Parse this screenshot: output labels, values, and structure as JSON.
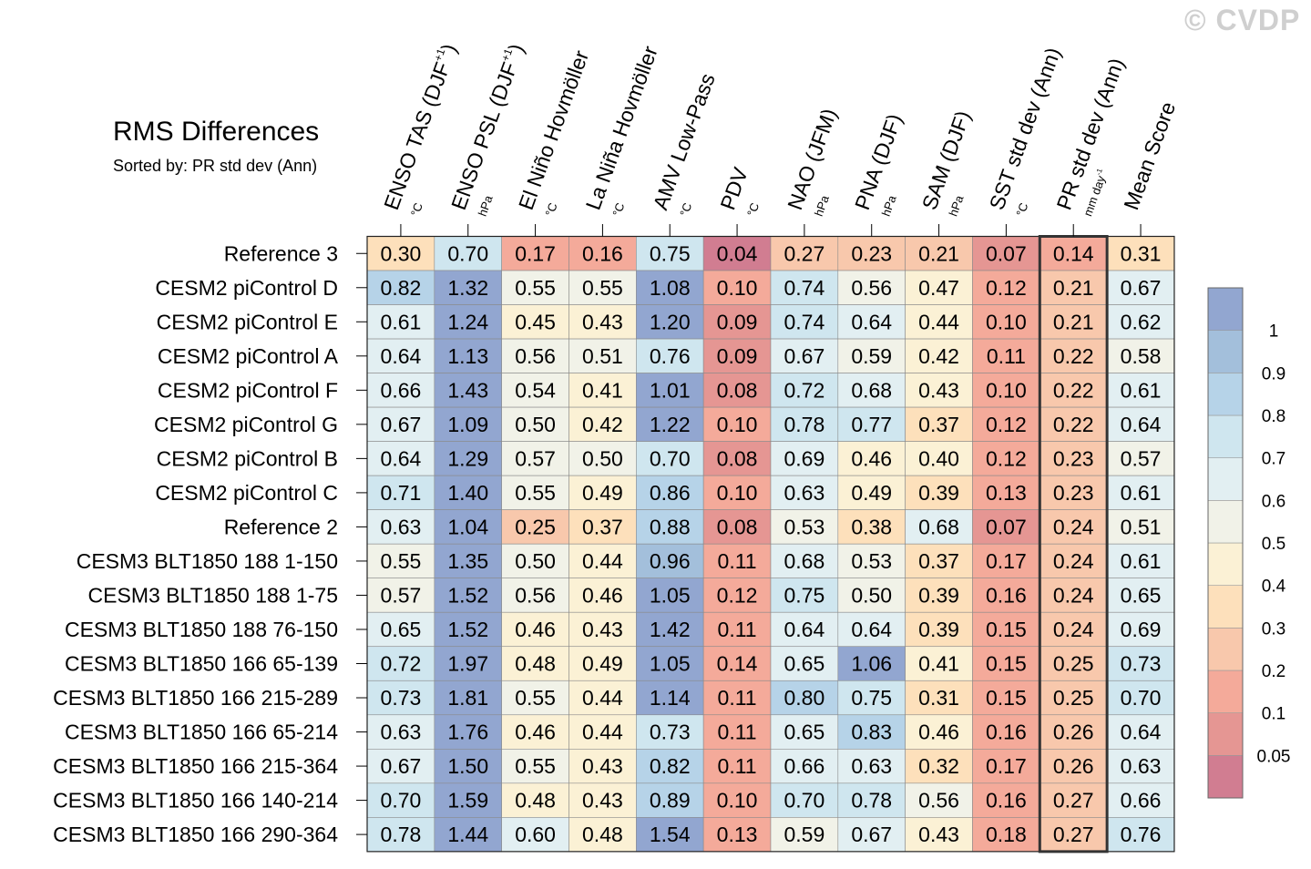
{
  "copyright": "© CVDP",
  "chart_data": {
    "type": "heatmap",
    "title": "RMS Differences",
    "subtitle": "Sorted by: PR std dev (Ann)",
    "highlight_column": "PR std dev (Ann)",
    "columns": [
      {
        "label": "ENSO TAS (DJF+1)",
        "name": "ENSO TAS (DJF",
        "sup": "+1",
        "close": ")",
        "unit": "°C"
      },
      {
        "label": "ENSO PSL (DJF+1)",
        "name": "ENSO PSL (DJF",
        "sup": "+1",
        "close": ")",
        "unit": "hPa"
      },
      {
        "label": "El Niño Hovmöller",
        "name": "El Niño Hovmöller",
        "sup": "",
        "close": "",
        "unit": "°C"
      },
      {
        "label": "La Niña Hovmöller",
        "name": "La Niña Hovmöller",
        "sup": "",
        "close": "",
        "unit": "°C"
      },
      {
        "label": "AMV Low-Pass",
        "name": "AMV Low-Pass",
        "sup": "",
        "close": "",
        "unit": "°C"
      },
      {
        "label": "PDV",
        "name": "PDV",
        "sup": "",
        "close": "",
        "unit": "°C"
      },
      {
        "label": "NAO (JFM)",
        "name": "NAO (JFM)",
        "sup": "",
        "close": "",
        "unit": "hPa"
      },
      {
        "label": "PNA (DJF)",
        "name": "PNA (DJF)",
        "sup": "",
        "close": "",
        "unit": "hPa"
      },
      {
        "label": "SAM (DJF)",
        "name": "SAM (DJF)",
        "sup": "",
        "close": "",
        "unit": "hPa"
      },
      {
        "label": "SST std dev (Ann)",
        "name": "SST std dev (Ann)",
        "sup": "",
        "close": "",
        "unit": "°C"
      },
      {
        "label": "PR std dev (Ann)",
        "name": "PR std dev (Ann)",
        "sup": "",
        "close": "",
        "unit": "mm day",
        "unit_sup": "-1"
      },
      {
        "label": "Mean Score",
        "name": "Mean Score",
        "sup": "",
        "close": "",
        "unit": ""
      }
    ],
    "rows": [
      {
        "name": "Reference 3",
        "values": [
          "0.30",
          "0.70",
          "0.17",
          "0.16",
          "0.75",
          "0.04",
          "0.27",
          "0.23",
          "0.21",
          "0.07",
          "0.14",
          "0.31"
        ]
      },
      {
        "name": "CESM2 piControl D",
        "values": [
          "0.82",
          "1.32",
          "0.55",
          "0.55",
          "1.08",
          "0.10",
          "0.74",
          "0.56",
          "0.47",
          "0.12",
          "0.21",
          "0.67"
        ]
      },
      {
        "name": "CESM2 piControl E",
        "values": [
          "0.61",
          "1.24",
          "0.45",
          "0.43",
          "1.20",
          "0.09",
          "0.74",
          "0.64",
          "0.44",
          "0.10",
          "0.21",
          "0.62"
        ]
      },
      {
        "name": "CESM2 piControl A",
        "values": [
          "0.64",
          "1.13",
          "0.56",
          "0.51",
          "0.76",
          "0.09",
          "0.67",
          "0.59",
          "0.42",
          "0.11",
          "0.22",
          "0.58"
        ]
      },
      {
        "name": "CESM2 piControl F",
        "values": [
          "0.66",
          "1.43",
          "0.54",
          "0.41",
          "1.01",
          "0.08",
          "0.72",
          "0.68",
          "0.43",
          "0.10",
          "0.22",
          "0.61"
        ]
      },
      {
        "name": "CESM2 piControl G",
        "values": [
          "0.67",
          "1.09",
          "0.50",
          "0.42",
          "1.22",
          "0.10",
          "0.78",
          "0.77",
          "0.37",
          "0.12",
          "0.22",
          "0.64"
        ]
      },
      {
        "name": "CESM2 piControl B",
        "values": [
          "0.64",
          "1.29",
          "0.57",
          "0.50",
          "0.70",
          "0.08",
          "0.69",
          "0.46",
          "0.40",
          "0.12",
          "0.23",
          "0.57"
        ]
      },
      {
        "name": "CESM2 piControl C",
        "values": [
          "0.71",
          "1.40",
          "0.55",
          "0.49",
          "0.86",
          "0.10",
          "0.63",
          "0.49",
          "0.39",
          "0.13",
          "0.23",
          "0.61"
        ]
      },
      {
        "name": "Reference 2",
        "values": [
          "0.63",
          "1.04",
          "0.25",
          "0.37",
          "0.88",
          "0.08",
          "0.53",
          "0.38",
          "0.68",
          "0.07",
          "0.24",
          "0.51"
        ]
      },
      {
        "name": "CESM3 BLT1850 188 1-150",
        "values": [
          "0.55",
          "1.35",
          "0.50",
          "0.44",
          "0.96",
          "0.11",
          "0.68",
          "0.53",
          "0.37",
          "0.17",
          "0.24",
          "0.61"
        ]
      },
      {
        "name": "CESM3 BLT1850 188 1-75",
        "values": [
          "0.57",
          "1.52",
          "0.56",
          "0.46",
          "1.05",
          "0.12",
          "0.75",
          "0.50",
          "0.39",
          "0.16",
          "0.24",
          "0.65"
        ]
      },
      {
        "name": "CESM3 BLT1850 188 76-150",
        "values": [
          "0.65",
          "1.52",
          "0.46",
          "0.43",
          "1.42",
          "0.11",
          "0.64",
          "0.64",
          "0.39",
          "0.15",
          "0.24",
          "0.69"
        ]
      },
      {
        "name": "CESM3 BLT1850 166 65-139",
        "values": [
          "0.72",
          "1.97",
          "0.48",
          "0.49",
          "1.05",
          "0.14",
          "0.65",
          "1.06",
          "0.41",
          "0.15",
          "0.25",
          "0.73"
        ]
      },
      {
        "name": "CESM3 BLT1850 166 215-289",
        "values": [
          "0.73",
          "1.81",
          "0.55",
          "0.44",
          "1.14",
          "0.11",
          "0.80",
          "0.75",
          "0.31",
          "0.15",
          "0.25",
          "0.70"
        ]
      },
      {
        "name": "CESM3 BLT1850 166 65-214",
        "values": [
          "0.63",
          "1.76",
          "0.46",
          "0.44",
          "0.73",
          "0.11",
          "0.65",
          "0.83",
          "0.46",
          "0.16",
          "0.26",
          "0.64"
        ]
      },
      {
        "name": "CESM3 BLT1850 166 215-364",
        "values": [
          "0.67",
          "1.50",
          "0.55",
          "0.43",
          "0.82",
          "0.11",
          "0.66",
          "0.63",
          "0.32",
          "0.17",
          "0.26",
          "0.63"
        ]
      },
      {
        "name": "CESM3 BLT1850 166 140-214",
        "values": [
          "0.70",
          "1.59",
          "0.48",
          "0.43",
          "0.89",
          "0.10",
          "0.70",
          "0.78",
          "0.56",
          "0.16",
          "0.27",
          "0.66"
        ]
      },
      {
        "name": "CESM3 BLT1850 166 290-364",
        "values": [
          "0.78",
          "1.44",
          "0.60",
          "0.48",
          "1.54",
          "0.13",
          "0.59",
          "0.67",
          "0.43",
          "0.18",
          "0.27",
          "0.76"
        ]
      }
    ],
    "colorbar": {
      "levels": [
        "0.05",
        "0.1",
        "0.2",
        "0.3",
        "0.4",
        "0.5",
        "0.6",
        "0.7",
        "0.8",
        "0.9",
        "1"
      ],
      "colors_low_to_high": [
        "#d17d91",
        "#e59693",
        "#f4aa9a",
        "#f8c8ac",
        "#fde0bb",
        "#fbf1d5",
        "#f1f2e8",
        "#e2eff2",
        "#cfe6ef",
        "#b6d3e8",
        "#a3bfdb",
        "#92a6d0"
      ]
    }
  }
}
